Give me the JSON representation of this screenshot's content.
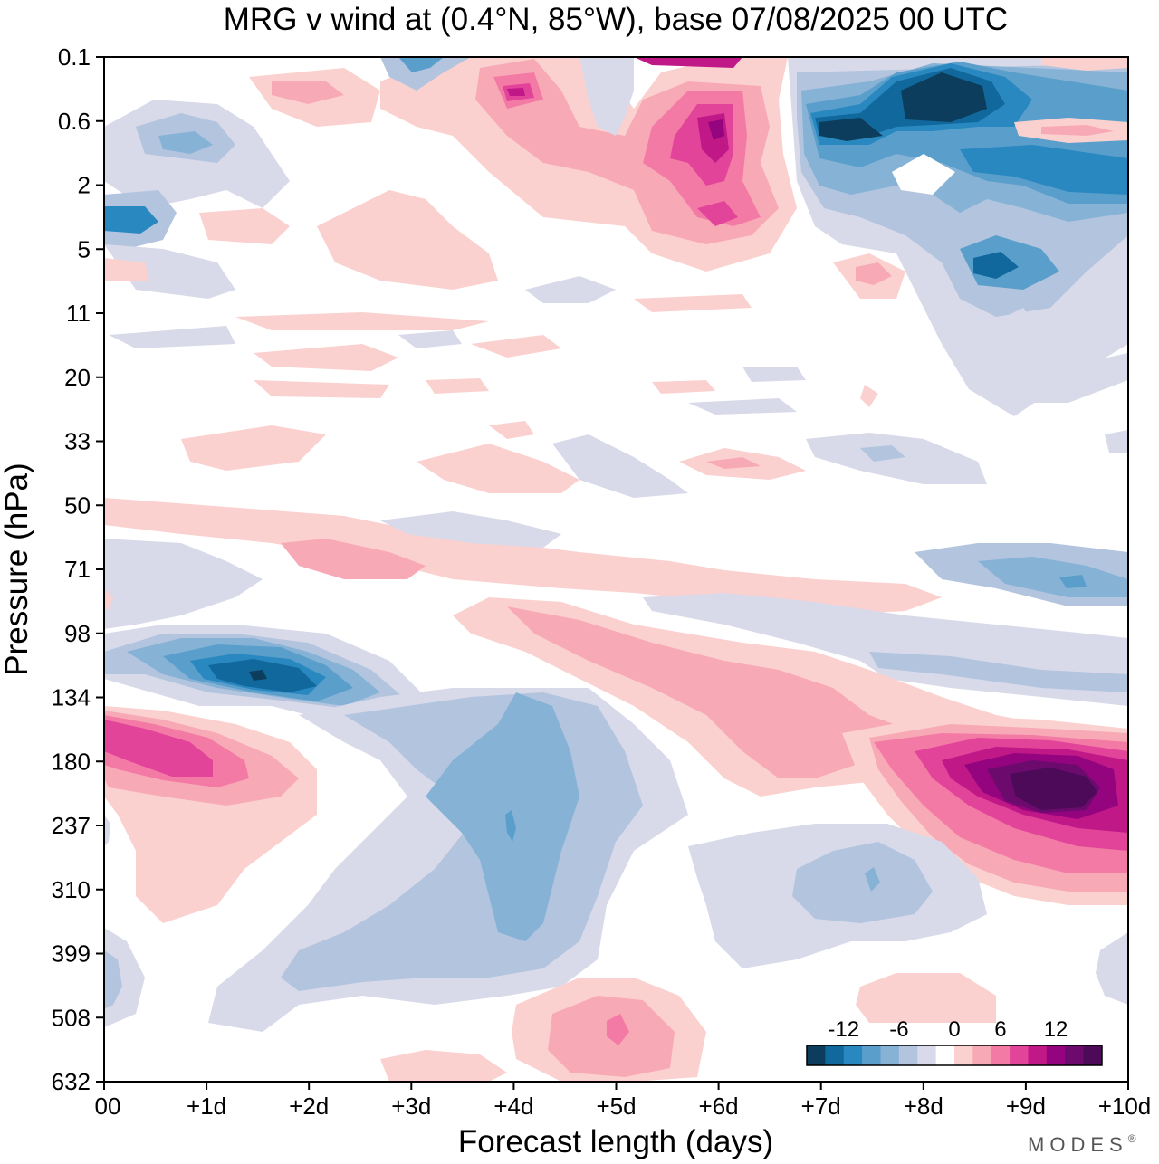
{
  "chart_data": {
    "type": "heatmap",
    "title": "MRG v wind at (0.4°N, 85°W),  base 07/08/2025  00 UTC",
    "xlabel": "Forecast length (days)",
    "ylabel": "Pressure (hPa)",
    "x_ticks": [
      "00",
      "+1d",
      "+2d",
      "+3d",
      "+4d",
      "+5d",
      "+6d",
      "+7d",
      "+8d",
      "+9d",
      "+10d"
    ],
    "xlim": [
      0,
      10
    ],
    "y_ticks": [
      "0.1",
      "0.6",
      "2",
      "5",
      "11",
      "20",
      "33",
      "50",
      "71",
      "98",
      "134",
      "180",
      "237",
      "310",
      "399",
      "508",
      "632"
    ],
    "y_scale": "pressure (log-like), top = 0.1 hPa, bottom = 632 hPa",
    "colorbar": {
      "tick_labels": [
        "-12",
        "-6",
        "0",
        "6",
        "12"
      ],
      "levels": [
        -16,
        -14,
        -12,
        -10,
        -8,
        -6,
        -4,
        -2,
        2,
        4,
        6,
        8,
        10,
        12,
        14,
        16
      ],
      "colors": [
        "#0d3d5c",
        "#11689c",
        "#2a88c0",
        "#5a9fcb",
        "#86b2d6",
        "#b2c4de",
        "#d8d9e9",
        "#ffffff",
        "#fbd1cf",
        "#f8a9b6",
        "#f47aa6",
        "#e2449a",
        "#c01887",
        "#93047e",
        "#6c0a6e",
        "#4d0a59"
      ]
    },
    "features": [
      {
        "name": "negative lobe upper-right",
        "day_range": [
          6.9,
          10
        ],
        "pressure_range": [
          "0.1",
          "11"
        ],
        "min_value": -16
      },
      {
        "name": "positive lobe day 5.5-6.5 upper",
        "day_range": [
          5,
          7
        ],
        "pressure_range": [
          "0.6",
          "5"
        ],
        "max_value": 12
      },
      {
        "name": "negative lobe day 1-2.5 ~120 hPa",
        "day_range": [
          0.5,
          3
        ],
        "pressure_range": [
          "98",
          "134"
        ],
        "min_value": -12
      },
      {
        "name": "positive lobe day 0-1 ~180 hPa",
        "day_range": [
          0,
          2
        ],
        "pressure_range": [
          "134",
          "237"
        ],
        "max_value": 10
      },
      {
        "name": "negative column day 3-5 lower",
        "day_range": [
          3,
          5.5
        ],
        "pressure_range": [
          "134",
          "508"
        ],
        "min_value": -8
      },
      {
        "name": "positive lobe day 8-10 ~200 hPa",
        "day_range": [
          7.5,
          10
        ],
        "pressure_range": [
          "134",
          "310"
        ],
        "max_value": 16
      },
      {
        "name": "positive band descending day 4-9",
        "day_range": [
          3.5,
          9
        ],
        "pressure_range": [
          "71",
          "237"
        ],
        "max_value": 6
      },
      {
        "name": "positive spot day 5 low",
        "day_range": [
          4,
          6.5
        ],
        "pressure_range": [
          "399",
          "632"
        ],
        "max_value": 8
      }
    ]
  },
  "branding": {
    "logo_text": "MODES",
    "registered": "®"
  }
}
